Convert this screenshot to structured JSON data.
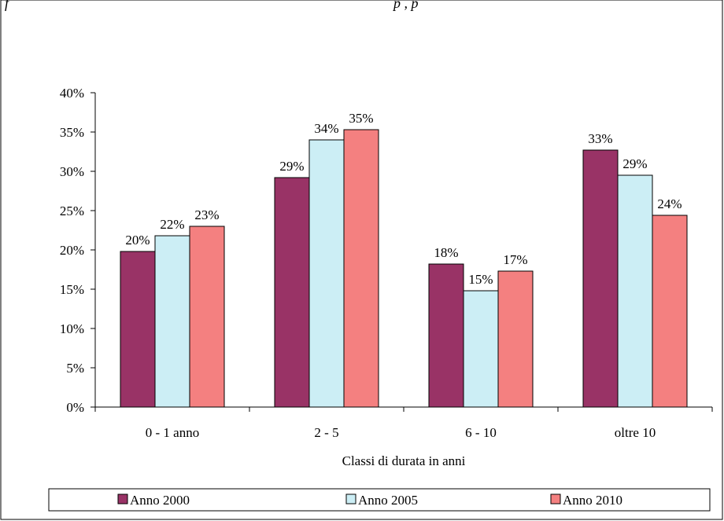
{
  "header": {
    "caption_fragment_left": "f",
    "caption_fragment_right": "p                ,  p"
  },
  "chart_data": {
    "type": "bar",
    "categories": [
      "0 - 1 anno",
      "2 - 5",
      "6 - 10",
      "oltre 10"
    ],
    "series": [
      {
        "name": "Anno 2000",
        "values": [
          20,
          29,
          18,
          33
        ],
        "value_labels": [
          "20%",
          "29%",
          "18%",
          "33%"
        ],
        "color": "#993366"
      },
      {
        "name": "Anno 2005",
        "values": [
          22,
          34,
          15,
          29
        ],
        "value_labels": [
          "22%",
          "34%",
          "15%",
          "29%"
        ],
        "color": "#cceef5"
      },
      {
        "name": "Anno 2010",
        "values": [
          23,
          35,
          17,
          24
        ],
        "value_labels": [
          "23%",
          "35%",
          "17%",
          "24%"
        ],
        "color": "#f48080"
      }
    ],
    "bar_heights_exact": [
      [
        19.8,
        29.2,
        18.2,
        32.7
      ],
      [
        21.8,
        34.0,
        14.8,
        29.5
      ],
      [
        23.0,
        35.3,
        17.3,
        24.4
      ]
    ],
    "xlabel": "Classi di durata in anni",
    "ylabel": "",
    "ylim": [
      0,
      40
    ],
    "yticks": [
      "0%",
      "5%",
      "10%",
      "15%",
      "20%",
      "25%",
      "30%",
      "35%",
      "40%"
    ],
    "grid": false,
    "legend_position": "bottom"
  }
}
